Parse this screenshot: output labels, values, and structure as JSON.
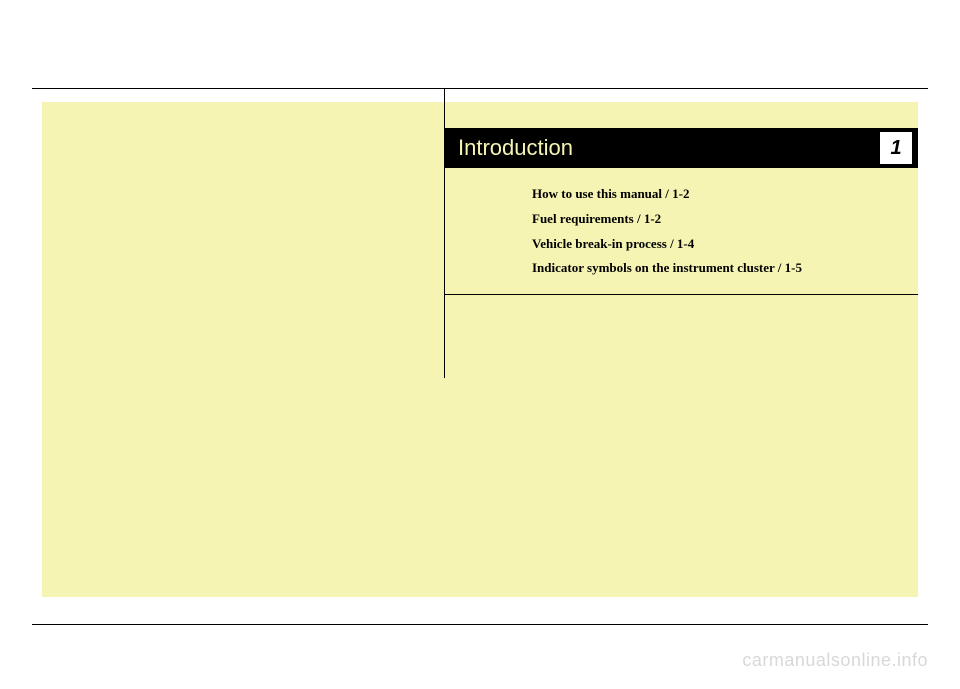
{
  "page": {
    "title": "Introduction",
    "chapter_number": "1",
    "background_color": "#f6f4b2",
    "title_bar_color": "#000000",
    "title_text_color": "#f6f4b2"
  },
  "toc": {
    "items": [
      "How to use this manual / 1-2",
      "Fuel requirements / 1-2",
      "Vehicle break-in process / 1-4",
      "Indicator symbols on the instrument cluster / 1-5"
    ]
  },
  "watermark": {
    "text": "carmanualsonline.info",
    "color": "#d8d8d8"
  }
}
